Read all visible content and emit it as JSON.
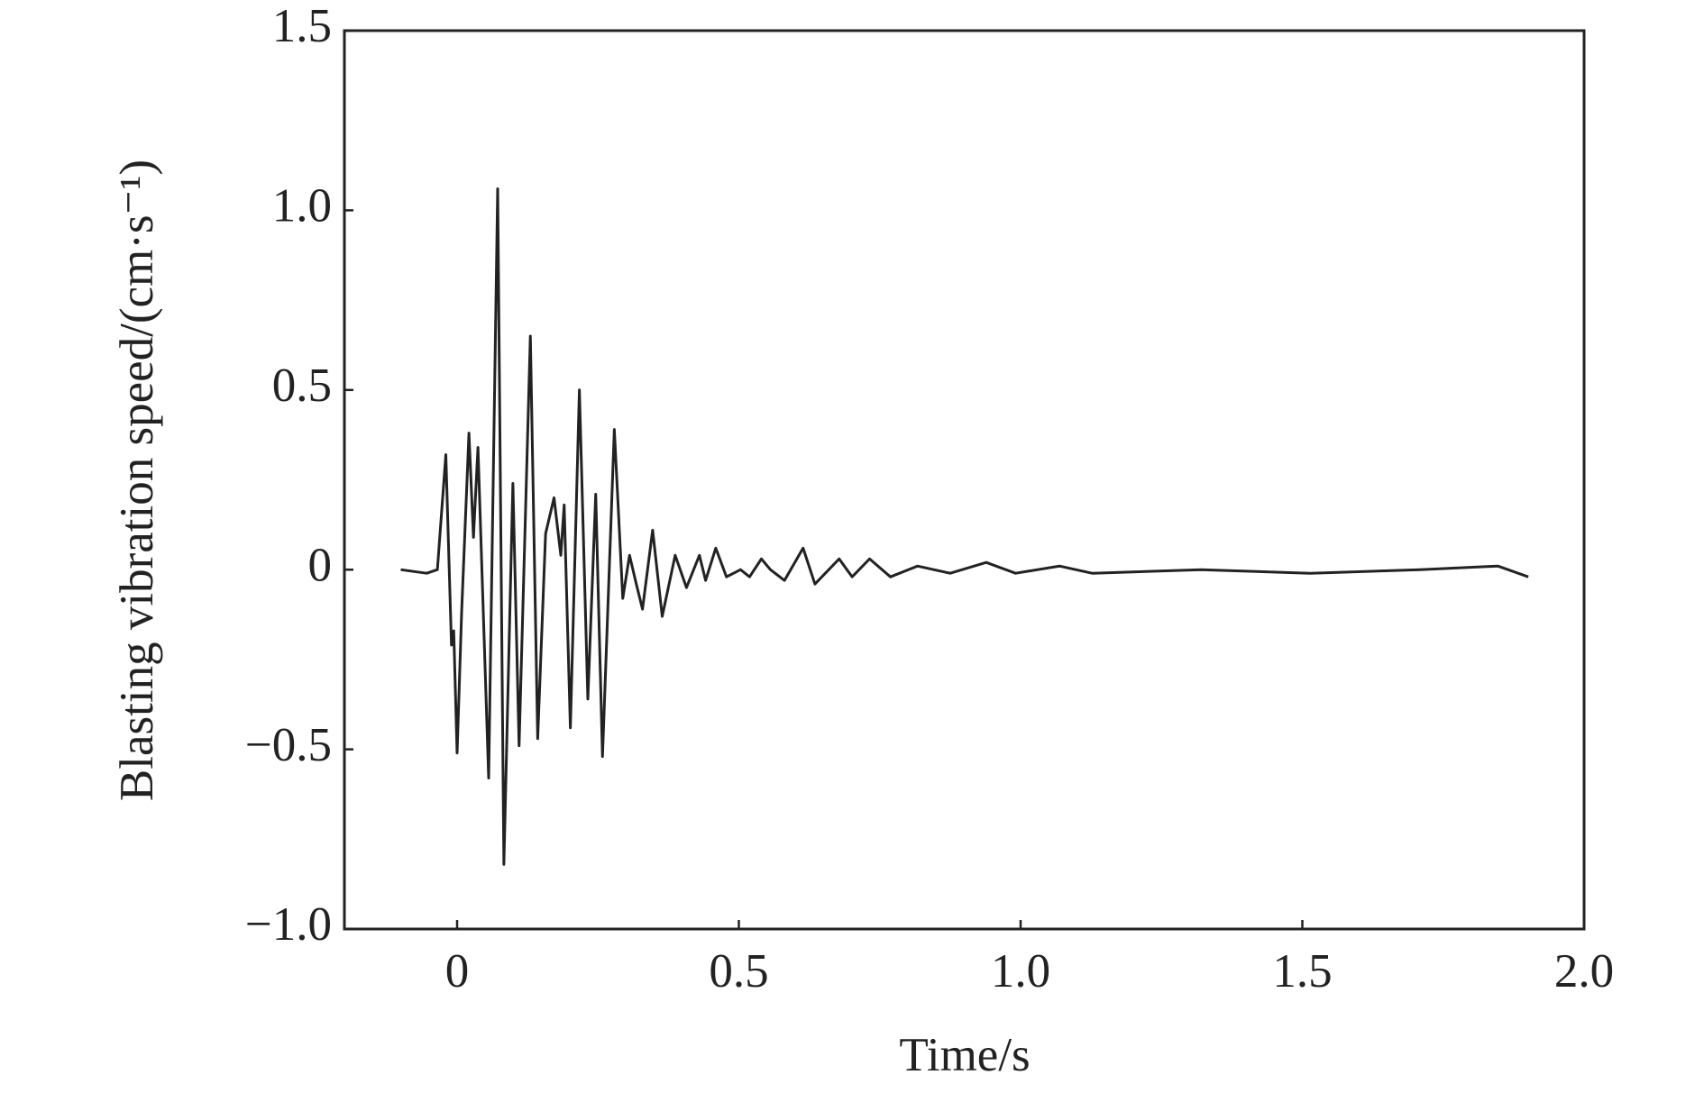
{
  "chart_data": {
    "type": "line",
    "xlabel": "Time/s",
    "ylabel": "Blasting vibration speed/(cm·s⁻¹)",
    "xlim": [
      -0.2,
      2.0
    ],
    "ylim": [
      -1.0,
      1.5
    ],
    "xticks": [
      0,
      0.5,
      {
        "value": 1,
        "label": "1.0"
      },
      1.5,
      {
        "value": 2,
        "label": "2.0"
      }
    ],
    "yticks": [
      {
        "value": -1,
        "label": "−1.0"
      },
      {
        "value": -0.5,
        "label": "−0.5"
      },
      0,
      0.5,
      {
        "value": 1,
        "label": "1.0"
      },
      1.5
    ],
    "color": "#222222",
    "x": [
      -0.1,
      -0.054,
      -0.035,
      -0.02,
      -0.01,
      -0.006,
      0.0,
      0.008,
      0.021,
      0.029,
      0.037,
      0.056,
      0.072,
      0.083,
      0.099,
      0.11,
      0.13,
      0.143,
      0.157,
      0.172,
      0.184,
      0.19,
      0.201,
      0.217,
      0.232,
      0.246,
      0.258,
      0.279,
      0.294,
      0.306,
      0.318,
      0.329,
      0.347,
      0.364,
      0.387,
      0.407,
      0.43,
      0.441,
      0.459,
      0.478,
      0.503,
      0.519,
      0.54,
      0.556,
      0.581,
      0.614,
      0.635,
      0.678,
      0.701,
      0.732,
      0.769,
      0.817,
      0.875,
      0.939,
      0.991,
      1.069,
      1.127,
      1.32,
      1.514,
      1.708,
      1.847,
      1.901
    ],
    "values": [
      0.0,
      -0.01,
      0.0,
      0.32,
      -0.21,
      -0.17,
      -0.51,
      -0.12,
      0.38,
      0.09,
      0.34,
      -0.58,
      1.06,
      -0.82,
      0.24,
      -0.49,
      0.65,
      -0.47,
      0.1,
      0.2,
      0.04,
      0.18,
      -0.44,
      0.5,
      -0.36,
      0.21,
      -0.52,
      0.39,
      -0.08,
      0.04,
      -0.04,
      -0.11,
      0.11,
      -0.13,
      0.04,
      -0.05,
      0.04,
      -0.03,
      0.06,
      -0.02,
      0.0,
      -0.02,
      0.03,
      0.0,
      -0.03,
      0.06,
      -0.04,
      0.03,
      -0.02,
      0.03,
      -0.02,
      0.01,
      -0.01,
      0.02,
      -0.01,
      0.01,
      -0.01,
      0.0,
      -0.01,
      0.0,
      0.01,
      -0.02
    ]
  }
}
